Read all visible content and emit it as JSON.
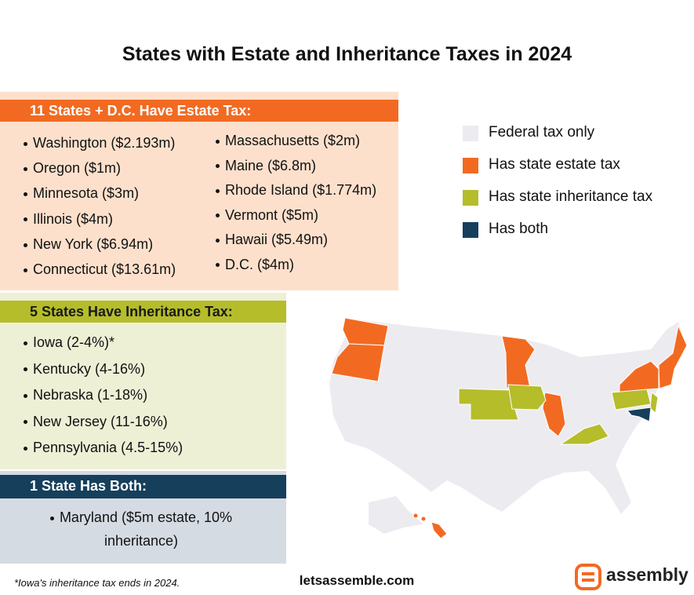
{
  "title": "States with Estate and Inheritance Taxes in 2024",
  "estate": {
    "heading": "11 States + D.C. Have Estate Tax:",
    "left": [
      "Washington ($2.193m)",
      "Oregon ($1m)",
      "Minnesota ($3m)",
      "Illinois ($4m)",
      "New York ($6.94m)",
      "Connecticut ($13.61m)"
    ],
    "right": [
      "Massachusetts ($2m)",
      "Maine ($6.8m)",
      "Rhode Island ($1.774m)",
      "Vermont ($5m)",
      "Hawaii ($5.49m)",
      "D.C. ($4m)"
    ]
  },
  "inheritance": {
    "heading": "5 States Have Inheritance Tax:",
    "items": [
      "Iowa (2-4%)*",
      "Kentucky (4-16%)",
      "Nebraska (1-18%)",
      "New Jersey (11-16%)",
      "Pennsylvania (4.5-15%)"
    ]
  },
  "both": {
    "heading": "1 State Has Both:",
    "items": [
      "Maryland ($5m estate, 10% inheritance)"
    ]
  },
  "legend": [
    {
      "label": "Federal tax only",
      "color": "#ececf0"
    },
    {
      "label": "Has state estate tax",
      "color": "#f26a21"
    },
    {
      "label": "Has state inheritance tax",
      "color": "#b5bd2b"
    },
    {
      "label": "Has both",
      "color": "#163f5c"
    }
  ],
  "footnote": "*Iowa's inheritance tax ends in 2024.",
  "website": "letsassemble.com",
  "logo": "assembly"
}
